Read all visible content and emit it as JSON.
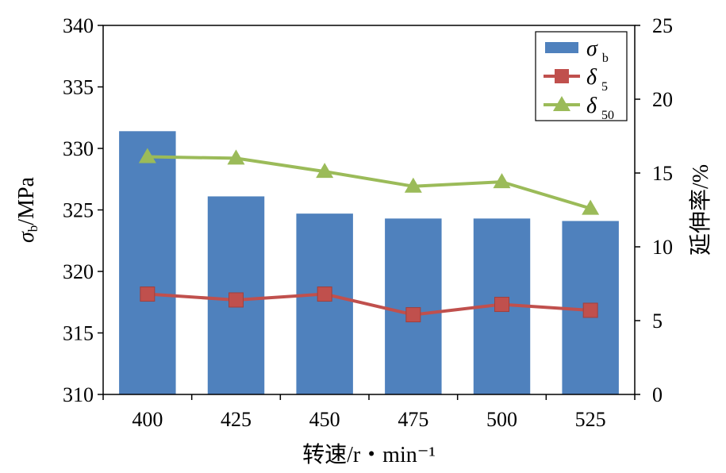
{
  "chart_data": {
    "type": "bar-line-combo",
    "categories": [
      "400",
      "425",
      "450",
      "475",
      "500",
      "525"
    ],
    "xlabel": "转速/r・min⁻¹",
    "ylabel_left": {
      "symbol": "σ",
      "sub": "b",
      "unit": "/MPa"
    },
    "ylabel_right": "延伸率/%",
    "ylim_left": [
      310,
      340
    ],
    "ylim_right": [
      0,
      25
    ],
    "yticks_left": [
      310,
      315,
      320,
      325,
      330,
      335,
      340
    ],
    "yticks_right": [
      0,
      5,
      10,
      15,
      20,
      25
    ],
    "grid": false,
    "legend_position": "top-right",
    "series": [
      {
        "name": "σb",
        "sym": "σ",
        "sub": "b",
        "kind": "bar",
        "axis": "left",
        "color": "#4f81bd",
        "values": [
          331.4,
          326.1,
          324.7,
          324.3,
          324.3,
          324.1
        ]
      },
      {
        "name": "δ5",
        "sym": "δ",
        "sub": "5",
        "kind": "line",
        "marker": "square",
        "axis": "right",
        "color": "#c0504d",
        "values": [
          6.8,
          6.4,
          6.8,
          5.4,
          6.1,
          5.7
        ]
      },
      {
        "name": "δ50",
        "sym": "δ",
        "sub": "50",
        "kind": "line",
        "marker": "triangle",
        "axis": "right",
        "color": "#9bbb59",
        "values": [
          16.1,
          16.0,
          15.1,
          14.1,
          14.4,
          12.6
        ]
      }
    ]
  }
}
